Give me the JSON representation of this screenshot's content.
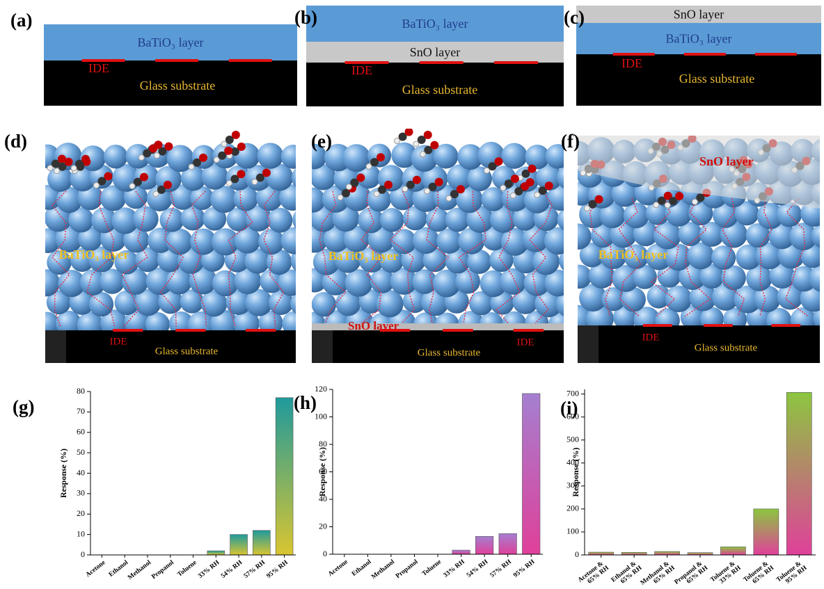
{
  "schematics": [
    {
      "label": "(a)",
      "layers": [
        "BaTiO₃ layer"
      ],
      "electrode": "IDE",
      "substrate": "Glass substrate"
    },
    {
      "label": "(b)",
      "layers": [
        "BaTiO₃ layer",
        "SnO layer"
      ],
      "electrode": "IDE",
      "substrate": "Glass substrate"
    },
    {
      "label": "(c)",
      "layers": [
        "SnO layer",
        "BaTiO₃ layer"
      ],
      "electrode": "IDE",
      "substrate": "Glass substrate"
    }
  ],
  "models": [
    {
      "label": "(d)",
      "layer": "BaTiO₃ layer",
      "electrode": "IDE",
      "substrate": "Glass substrate"
    },
    {
      "label": "(e)",
      "layer": "BaTiO₃ layer",
      "interlayer": "SnO layer",
      "electrode": "IDE",
      "substrate": "Glass substrate"
    },
    {
      "label": "(f)",
      "layer": "BaTiO₃ layer",
      "overlayer": "SnO layer",
      "electrode": "IDE",
      "substrate": "Glass substrate"
    }
  ],
  "chart_data": [
    {
      "type": "bar",
      "label": "(g)",
      "ylabel": "Response (%)",
      "categories": [
        "Acetone",
        "Ethanol",
        "Methanol",
        "Propanol",
        "Toluene",
        "33% RH",
        "54% RH",
        "57% RH",
        "95% RH"
      ],
      "values": [
        0,
        0,
        0,
        0,
        0,
        2,
        10,
        12,
        77
      ],
      "gradient": [
        "#1f9a9c",
        "#d9c530"
      ],
      "ylim": [
        0,
        80
      ],
      "yticks": [
        0,
        10,
        20,
        30,
        40,
        50,
        60,
        70,
        80
      ]
    },
    {
      "type": "bar",
      "label": "(h)",
      "ylabel": "Response (%)",
      "categories": [
        "Acetone",
        "Ethanol",
        "Methanol",
        "Propanol",
        "Toluene",
        "33% RH",
        "54% RH",
        "57% RH",
        "95% RH"
      ],
      "values": [
        0,
        0,
        0,
        0,
        0,
        3,
        13,
        15,
        117
      ],
      "gradient": [
        "#a57fd0",
        "#e0409a"
      ],
      "ylim": [
        0,
        120
      ],
      "yticks": [
        0,
        20,
        40,
        60,
        80,
        100,
        120
      ]
    },
    {
      "type": "bar",
      "label": "(i)",
      "ylabel": "Response (%)",
      "categories": [
        "Acetone & 65% RH",
        "Ethanol & 65% RH",
        "Methanol & 65% RH",
        "Propanol & 65% RH",
        "Toluene & 33% RH",
        "Toluene & 65% RH",
        "Toluene & 95% RH"
      ],
      "values": [
        12,
        11,
        15,
        10,
        35,
        200,
        707
      ],
      "gradient": [
        "#8cc63f",
        "#e0409a"
      ],
      "ylim": [
        0,
        720
      ],
      "yticks": [
        0,
        100,
        200,
        300,
        400,
        500,
        600,
        700
      ]
    }
  ]
}
